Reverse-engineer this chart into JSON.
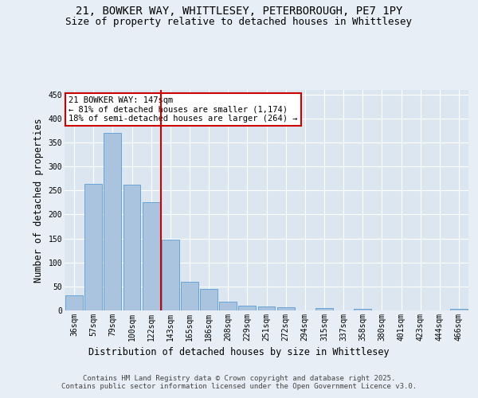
{
  "title_line1": "21, BOWKER WAY, WHITTLESEY, PETERBOROUGH, PE7 1PY",
  "title_line2": "Size of property relative to detached houses in Whittlesey",
  "xlabel": "Distribution of detached houses by size in Whittlesey",
  "ylabel": "Number of detached properties",
  "footer_line1": "Contains HM Land Registry data © Crown copyright and database right 2025.",
  "footer_line2": "Contains public sector information licensed under the Open Government Licence v3.0.",
  "categories": [
    "36sqm",
    "57sqm",
    "79sqm",
    "100sqm",
    "122sqm",
    "143sqm",
    "165sqm",
    "186sqm",
    "208sqm",
    "229sqm",
    "251sqm",
    "272sqm",
    "294sqm",
    "315sqm",
    "337sqm",
    "358sqm",
    "380sqm",
    "401sqm",
    "423sqm",
    "444sqm",
    "466sqm"
  ],
  "values": [
    31,
    263,
    370,
    262,
    226,
    148,
    60,
    45,
    18,
    10,
    8,
    6,
    0,
    5,
    0,
    3,
    0,
    0,
    0,
    0,
    4
  ],
  "bar_color": "#aac4e0",
  "bar_edge_color": "#5b9bd5",
  "vline_x_index": 5,
  "vline_color": "#cc0000",
  "annotation_title": "21 BOWKER WAY: 147sqm",
  "annotation_line1": "← 81% of detached houses are smaller (1,174)",
  "annotation_line2": "18% of semi-detached houses are larger (264) →",
  "annotation_box_color": "#cc0000",
  "ylim": [
    0,
    460
  ],
  "yticks": [
    0,
    50,
    100,
    150,
    200,
    250,
    300,
    350,
    400,
    450
  ],
  "bg_color": "#e8eef5",
  "plot_bg_color": "#dce6f0",
  "grid_color": "#ffffff",
  "title_fontsize": 10,
  "subtitle_fontsize": 9,
  "axis_label_fontsize": 8.5,
  "tick_fontsize": 7,
  "footer_fontsize": 6.5,
  "annotation_fontsize": 7.5
}
